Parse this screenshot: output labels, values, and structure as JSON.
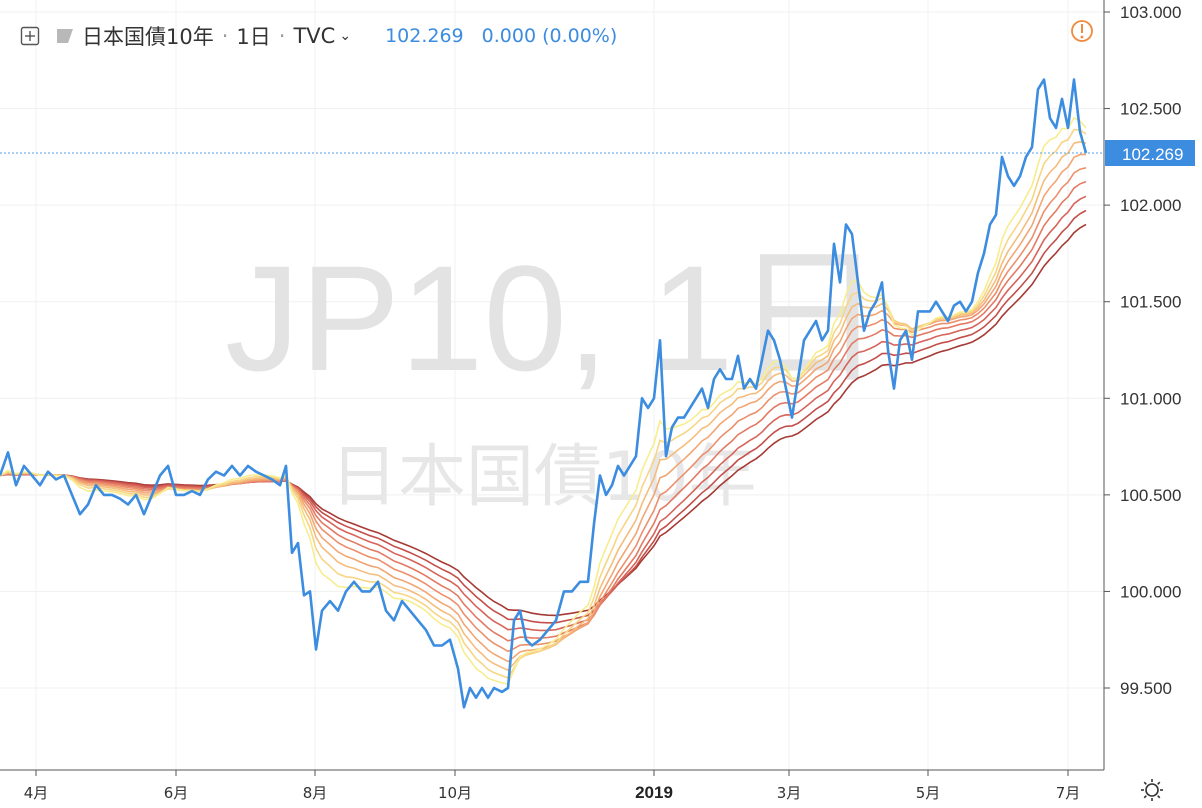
{
  "header": {
    "symbol": "日本国債10年",
    "interval": "1日",
    "exchange": "TVC",
    "price": "102.269",
    "change": "0.000 (0.00%)"
  },
  "watermark": {
    "line1": "JP10, 1日",
    "line2": "日本国債10年"
  },
  "icons": [
    "add-compare-icon",
    "flag-icon",
    "chevron-down-icon",
    "alert-icon",
    "settings-icon"
  ],
  "colors": {
    "price_line": "#3c8ce0",
    "ribbon": [
      "#f7ed8e",
      "#f8d585",
      "#f5bd7c",
      "#f1a674",
      "#ec906c",
      "#e37a63",
      "#d7645a",
      "#c44f4a",
      "#a63a34"
    ]
  },
  "chart_data": {
    "type": "line",
    "y_ticks": [
      "103.000",
      "102.500",
      "102.000",
      "101.500",
      "101.000",
      "100.500",
      "100.000",
      "99.500"
    ],
    "x_ticks": [
      "4月",
      "6月",
      "8月",
      "10月",
      "2019",
      "3月",
      "5月",
      "7月"
    ],
    "ylim": [
      99.0,
      103.05
    ],
    "last_value_label": "102.269",
    "series": [
      {
        "points": [
          [
            0,
            100.6
          ],
          [
            8,
            100.72
          ],
          [
            16,
            100.55
          ],
          [
            24,
            100.65
          ],
          [
            32,
            100.6
          ],
          [
            40,
            100.55
          ],
          [
            48,
            100.62
          ],
          [
            56,
            100.58
          ],
          [
            64,
            100.6
          ],
          [
            72,
            100.5
          ],
          [
            80,
            100.4
          ],
          [
            88,
            100.45
          ],
          [
            96,
            100.55
          ],
          [
            104,
            100.5
          ],
          [
            112,
            100.5
          ],
          [
            120,
            100.48
          ],
          [
            128,
            100.45
          ],
          [
            136,
            100.5
          ],
          [
            144,
            100.4
          ],
          [
            152,
            100.5
          ],
          [
            160,
            100.6
          ],
          [
            168,
            100.65
          ],
          [
            176,
            100.5
          ],
          [
            184,
            100.5
          ],
          [
            192,
            100.52
          ],
          [
            200,
            100.5
          ],
          [
            208,
            100.58
          ],
          [
            216,
            100.62
          ],
          [
            224,
            100.6
          ],
          [
            232,
            100.65
          ],
          [
            240,
            100.6
          ],
          [
            248,
            100.65
          ],
          [
            256,
            100.62
          ],
          [
            264,
            100.6
          ],
          [
            272,
            100.58
          ],
          [
            280,
            100.55
          ],
          [
            286,
            100.65
          ],
          [
            292,
            100.2
          ],
          [
            298,
            100.25
          ],
          [
            304,
            99.98
          ],
          [
            310,
            100.0
          ],
          [
            316,
            99.7
          ],
          [
            322,
            99.9
          ],
          [
            330,
            99.95
          ],
          [
            338,
            99.9
          ],
          [
            346,
            100.0
          ],
          [
            354,
            100.05
          ],
          [
            362,
            100.0
          ],
          [
            370,
            100.0
          ],
          [
            378,
            100.05
          ],
          [
            386,
            99.9
          ],
          [
            394,
            99.85
          ],
          [
            402,
            99.95
          ],
          [
            410,
            99.9
          ],
          [
            418,
            99.85
          ],
          [
            426,
            99.8
          ],
          [
            434,
            99.72
          ],
          [
            442,
            99.72
          ],
          [
            450,
            99.75
          ],
          [
            458,
            99.6
          ],
          [
            464,
            99.4
          ],
          [
            470,
            99.5
          ],
          [
            476,
            99.45
          ],
          [
            482,
            99.5
          ],
          [
            488,
            99.45
          ],
          [
            494,
            99.5
          ],
          [
            502,
            99.48
          ],
          [
            508,
            99.5
          ],
          [
            514,
            99.85
          ],
          [
            520,
            99.9
          ],
          [
            526,
            99.75
          ],
          [
            532,
            99.72
          ],
          [
            540,
            99.75
          ],
          [
            548,
            99.8
          ],
          [
            556,
            99.85
          ],
          [
            564,
            100.0
          ],
          [
            572,
            100.0
          ],
          [
            580,
            100.05
          ],
          [
            588,
            100.05
          ],
          [
            594,
            100.35
          ],
          [
            600,
            100.6
          ],
          [
            606,
            100.5
          ],
          [
            612,
            100.55
          ],
          [
            618,
            100.65
          ],
          [
            624,
            100.6
          ],
          [
            630,
            100.65
          ],
          [
            636,
            100.7
          ],
          [
            642,
            101.0
          ],
          [
            648,
            100.95
          ],
          [
            654,
            101.0
          ],
          [
            660,
            101.3
          ],
          [
            666,
            100.7
          ],
          [
            672,
            100.85
          ],
          [
            678,
            100.9
          ],
          [
            684,
            100.9
          ],
          [
            690,
            100.95
          ],
          [
            696,
            101.0
          ],
          [
            702,
            101.05
          ],
          [
            708,
            100.95
          ],
          [
            714,
            101.1
          ],
          [
            720,
            101.15
          ],
          [
            726,
            101.1
          ],
          [
            732,
            101.1
          ],
          [
            738,
            101.22
          ],
          [
            744,
            101.05
          ],
          [
            750,
            101.1
          ],
          [
            756,
            101.05
          ],
          [
            762,
            101.2
          ],
          [
            768,
            101.35
          ],
          [
            774,
            101.3
          ],
          [
            780,
            101.2
          ],
          [
            786,
            101.05
          ],
          [
            792,
            100.9
          ],
          [
            798,
            101.1
          ],
          [
            804,
            101.3
          ],
          [
            810,
            101.35
          ],
          [
            816,
            101.4
          ],
          [
            822,
            101.3
          ],
          [
            828,
            101.35
          ],
          [
            834,
            101.8
          ],
          [
            840,
            101.6
          ],
          [
            846,
            101.9
          ],
          [
            852,
            101.85
          ],
          [
            858,
            101.6
          ],
          [
            864,
            101.35
          ],
          [
            870,
            101.45
          ],
          [
            876,
            101.5
          ],
          [
            882,
            101.6
          ],
          [
            888,
            101.25
          ],
          [
            894,
            101.05
          ],
          [
            900,
            101.3
          ],
          [
            906,
            101.35
          ],
          [
            912,
            101.2
          ],
          [
            918,
            101.45
          ],
          [
            924,
            101.45
          ],
          [
            930,
            101.45
          ],
          [
            936,
            101.5
          ],
          [
            942,
            101.45
          ],
          [
            948,
            101.4
          ],
          [
            954,
            101.48
          ],
          [
            960,
            101.5
          ],
          [
            966,
            101.45
          ],
          [
            972,
            101.5
          ],
          [
            978,
            101.65
          ],
          [
            984,
            101.75
          ],
          [
            990,
            101.9
          ],
          [
            996,
            101.95
          ],
          [
            1002,
            102.25
          ],
          [
            1008,
            102.15
          ],
          [
            1014,
            102.1
          ],
          [
            1020,
            102.15
          ],
          [
            1026,
            102.25
          ],
          [
            1032,
            102.3
          ],
          [
            1038,
            102.6
          ],
          [
            1044,
            102.65
          ],
          [
            1050,
            102.45
          ],
          [
            1056,
            102.4
          ],
          [
            1062,
            102.55
          ],
          [
            1068,
            102.4
          ],
          [
            1074,
            102.65
          ],
          [
            1080,
            102.38
          ],
          [
            1086,
            102.27
          ]
        ]
      }
    ]
  }
}
